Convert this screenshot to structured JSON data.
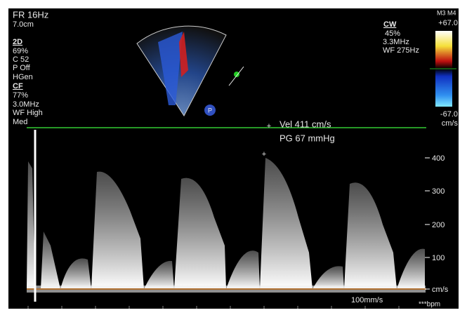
{
  "left_panel": {
    "frame_rate": "FR 16Hz",
    "depth": "7.0cm",
    "mode_2d": {
      "title": "2D",
      "lines": [
        "69%",
        "C 52",
        "P Off",
        "HGen"
      ]
    },
    "mode_cf": {
      "title": "CF",
      "lines": [
        "77%",
        "3.0MHz",
        "WF High",
        "Med"
      ]
    }
  },
  "right_panel": {
    "probe": "M3 M4",
    "mode_cw": {
      "title": "CW",
      "lines": [
        "45%",
        "3.3MHz",
        "WF 275Hz"
      ]
    },
    "color_max": "+67.0",
    "color_min": "-67.0",
    "color_unit": "cm/s"
  },
  "sector_marker": "P",
  "measurement": {
    "velocity": "Vel  411 cm/s",
    "gradient": "PG  67 mmHg"
  },
  "scale": {
    "labels": [
      "400",
      "300",
      "200",
      "100"
    ],
    "unit": "cm/s"
  },
  "footer": {
    "sweep": "100mm/s",
    "heart_rate": "***bpm"
  }
}
